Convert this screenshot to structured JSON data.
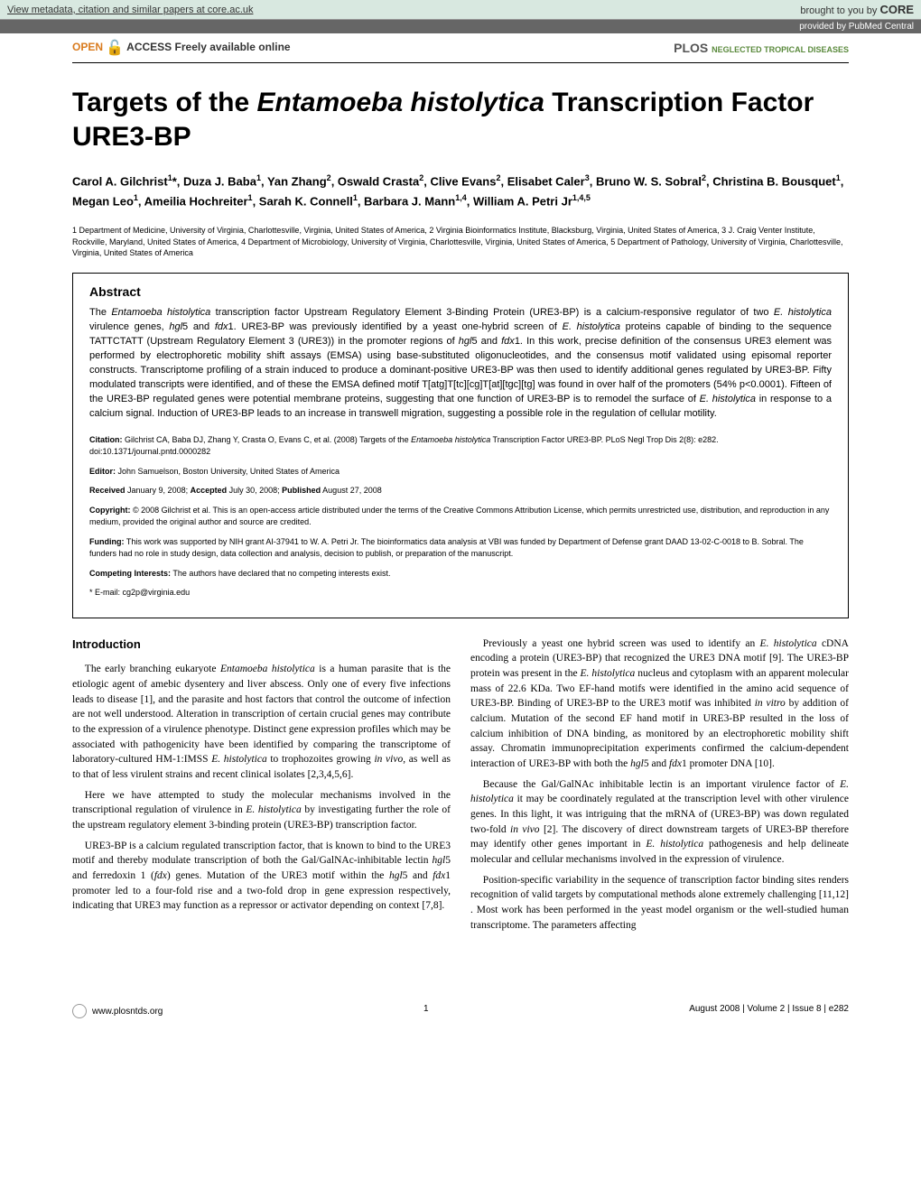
{
  "banner": {
    "left": "View metadata, citation and similar papers at core.ac.uk",
    "right_prefix": "brought to you by ",
    "core": "CORE",
    "provided": "provided by PubMed Central"
  },
  "open_access": {
    "open": "OPEN",
    "access": " ACCESS",
    "tagline": " Freely available online"
  },
  "plos": {
    "name": "PLOS",
    "sub": "NEGLECTED TROPICAL DISEASES"
  },
  "title_pre": "Targets of the ",
  "title_em": "Entamoeba histolytica",
  "title_post": " Transcription Factor URE3-BP",
  "authors_html": "Carol A. Gilchrist<sup>1</sup>*, Duza J. Baba<sup>1</sup>, Yan Zhang<sup>2</sup>, Oswald Crasta<sup>2</sup>, Clive Evans<sup>2</sup>, Elisabet Caler<sup>3</sup>, Bruno W. S. Sobral<sup>2</sup>, Christina B. Bousquet<sup>1</sup>, Megan Leo<sup>1</sup>, Ameilia Hochreiter<sup>1</sup>, Sarah K. Connell<sup>1</sup>, Barbara J. Mann<sup>1,4</sup>, William A. Petri Jr<sup>1,4,5</sup>",
  "affiliations": "1 Department of Medicine, University of Virginia, Charlottesville, Virginia, United States of America, 2 Virginia Bioinformatics Institute, Blacksburg, Virginia, United States of America, 3 J. Craig Venter Institute, Rockville, Maryland, United States of America, 4 Department of Microbiology, University of Virginia, Charlottesville, Virginia, United States of America, 5 Department of Pathology, University of Virginia, Charlottesville, Virginia, United States of America",
  "abstract_heading": "Abstract",
  "abstract_text": "The <em>Entamoeba histolytica</em> transcription factor Upstream Regulatory Element 3-Binding Protein (URE3-BP) is a calcium-responsive regulator of two <em>E. histolytica</em> virulence genes, <em>hgl</em>5 and <em>fdx</em>1. URE3-BP was previously identified by a yeast one-hybrid screen of <em>E. histolytica</em> proteins capable of binding to the sequence TATTCTATT (Upstream Regulatory Element 3 (URE3)) in the promoter regions of <em>hgl</em>5 and <em>fdx</em>1. In this work, precise definition of the consensus URE3 element was performed by electrophoretic mobility shift assays (EMSA) using base-substituted oligonucleotides, and the consensus motif validated using episomal reporter constructs. Transcriptome profiling of a strain induced to produce a dominant-positive URE3-BP was then used to identify additional genes regulated by URE3-BP. Fifty modulated transcripts were identified, and of these the EMSA defined motif T[atg]T[tc][cg]T[at][tgc][tg] was found in over half of the promoters (54% p<0.0001). Fifteen of the URE3-BP regulated genes were potential membrane proteins, suggesting that one function of URE3-BP is to remodel the surface of <em>E. histolytica</em> in response to a calcium signal. Induction of URE3-BP leads to an increase in transwell migration, suggesting a possible role in the regulation of cellular motility.",
  "citation": "<strong>Citation:</strong> Gilchrist CA, Baba DJ, Zhang Y, Crasta O, Evans C, et al. (2008) Targets of the <em>Entamoeba histolytica</em> Transcription Factor URE3-BP. PLoS Negl Trop Dis 2(8): e282. doi:10.1371/journal.pntd.0000282",
  "editor": "<strong>Editor:</strong> John Samuelson, Boston University, United States of America",
  "dates": "<strong>Received</strong> January 9, 2008; <strong>Accepted</strong> July 30, 2008; <strong>Published</strong> August 27, 2008",
  "copyright": "<strong>Copyright:</strong> © 2008 Gilchrist et al. This is an open-access article distributed under the terms of the Creative Commons Attribution License, which permits unrestricted use, distribution, and reproduction in any medium, provided the original author and source are credited.",
  "funding": "<strong>Funding:</strong> This work was supported by NIH grant AI-37941 to W. A. Petri Jr. The bioinformatics data analysis at VBI was funded by Department of Defense grant DAAD 13-02-C-0018 to B. Sobral. The funders had no role in study design, data collection and analysis, decision to publish, or preparation of the manuscript.",
  "competing": "<strong>Competing Interests:</strong> The authors have declared that no competing interests exist.",
  "email": "* E-mail: cg2p@virginia.edu",
  "intro_heading": "Introduction",
  "col1_p1": "The early branching eukaryote <em>Entamoeba histolytica</em> is a human parasite that is the etiologic agent of amebic dysentery and liver abscess. Only one of every five infections leads to disease [1], and the parasite and host factors that control the outcome of infection are not well understood. Alteration in transcription of certain crucial genes may contribute to the expression of a virulence phenotype. Distinct gene expression profiles which may be associated with pathogenicity have been identified by comparing the transcriptome of laboratory-cultured HM-1:IMSS <em>E. histolytica</em> to trophozoites growing <em>in vivo</em>, as well as to that of less virulent strains and recent clinical isolates [2,3,4,5,6].",
  "col1_p2": "Here we have attempted to study the molecular mechanisms involved in the transcriptional regulation of virulence in <em>E. histolytica</em> by investigating further the role of the upstream regulatory element 3-binding protein (URE3-BP) transcription factor.",
  "col1_p3": "URE3-BP is a calcium regulated transcription factor, that is known to bind to the URE3 motif and thereby modulate transcription of both the Gal/GalNAc-inhibitable lectin <em>hgl</em>5 and ferredoxin 1 (<em>fdx</em>) genes. Mutation of the URE3 motif within the <em>hgl</em>5 and <em>fdx</em>1 promoter led to a four-fold rise and a two-fold drop in gene expression respectively, indicating that URE3 may function as a repressor or activator depending on context [7,8].",
  "col2_p1": "Previously a yeast one hybrid screen was used to identify an <em>E. histolytica</em> cDNA encoding a protein (URE3-BP) that recognized the URE3 DNA motif [9]. The URE3-BP protein was present in the <em>E. histolytica</em> nucleus and cytoplasm with an apparent molecular mass of 22.6 KDa. Two EF-hand motifs were identified in the amino acid sequence of URE3-BP. Binding of URE3-BP to the URE3 motif was inhibited <em>in vitro</em> by addition of calcium. Mutation of the second EF hand motif in URE3-BP resulted in the loss of calcium inhibition of DNA binding, as monitored by an electrophoretic mobility shift assay. Chromatin immunoprecipitation experiments confirmed the calcium-dependent interaction of URE3-BP with both the <em>hgl</em>5 and <em>fdx</em>1 promoter DNA [10].",
  "col2_p2": "Because the Gal/GalNAc inhibitable lectin is an important virulence factor of <em>E. histolytica</em> it may be coordinately regulated at the transcription level with other virulence genes. In this light, it was intriguing that the mRNA of (URE3-BP) was down regulated two-fold <em>in vivo</em> [2]. The discovery of direct downstream targets of URE3-BP therefore may identify other genes important in <em>E. histolytica</em> pathogenesis and help delineate molecular and cellular mechanisms involved in the expression of virulence.",
  "col2_p3": "Position-specific variability in the sequence of transcription factor binding sites renders recognition of valid targets by computational methods alone extremely challenging [11,12] . Most work has been performed in the yeast model organism or the well-studied human transcriptome. The parameters affecting",
  "footer": {
    "url": "www.plosntds.org",
    "page": "1",
    "issue": "August 2008 | Volume 2 | Issue 8 | e282"
  },
  "colors": {
    "banner_bg": "#d8e8e0",
    "provided_bg": "#666666",
    "open_orange": "#d97b1e",
    "plos_green": "#5b8a3d"
  }
}
